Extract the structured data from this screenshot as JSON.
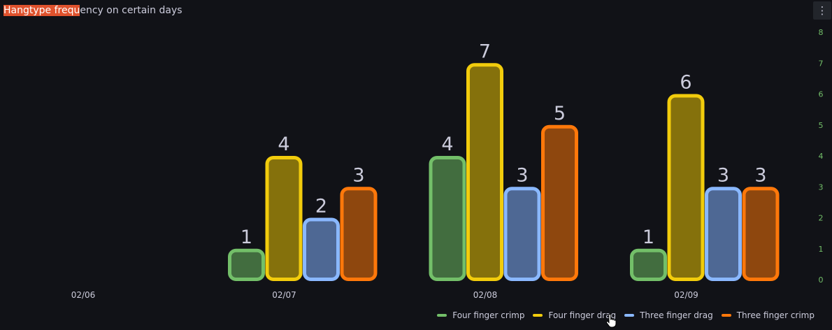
{
  "panel": {
    "title_highlight": "Hangtype frequ",
    "title_rest": "ency on certain days",
    "menu_icon": "vertical-dots-icon"
  },
  "chart_data": {
    "type": "bar",
    "categories": [
      "02/06",
      "02/07",
      "02/08",
      "02/09"
    ],
    "series": [
      {
        "name": "Four finger crimp",
        "values": [
          null,
          1,
          4,
          1
        ],
        "color": "#73bf69",
        "fill": "#426d3f"
      },
      {
        "name": "Four finger drag",
        "values": [
          null,
          4,
          7,
          6
        ],
        "color": "#f2cc0c",
        "fill": "#85710c"
      },
      {
        "name": "Three finger drag",
        "values": [
          null,
          2,
          3,
          3
        ],
        "color": "#8ab8ff",
        "fill": "#4e6894"
      },
      {
        "name": "Three finger crimp",
        "values": [
          null,
          3,
          5,
          3
        ],
        "color": "#ff780a",
        "fill": "#8e470e"
      }
    ],
    "ylim": [
      0,
      8
    ],
    "yticks": [
      "0",
      "1",
      "2",
      "3",
      "4",
      "5",
      "6",
      "7",
      "8"
    ],
    "yaxis_side": "right",
    "ytick_color": "#73bf69",
    "show_values": true,
    "legend_position": "bottom-right",
    "grid": false,
    "title": "",
    "xlabel": "",
    "ylabel": ""
  }
}
